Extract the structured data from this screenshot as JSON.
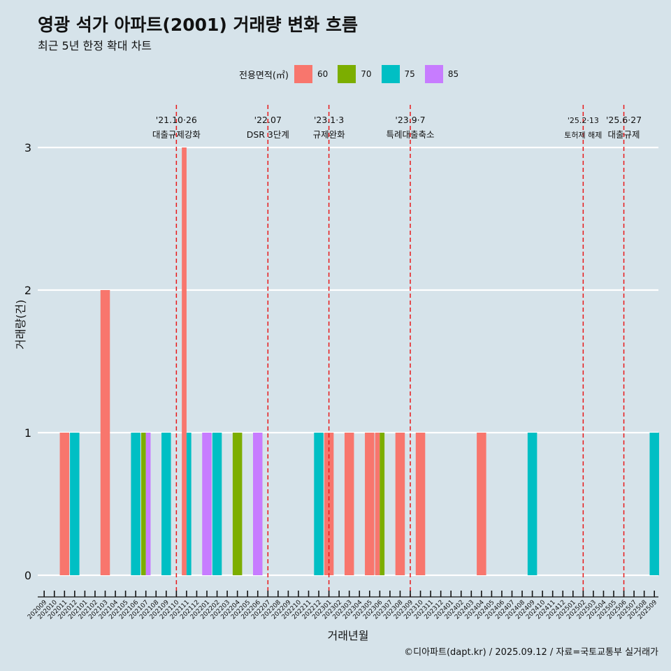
{
  "title": "영광 석가 아파트(2001) 거래량 변화 흐름",
  "subtitle": "최근 5년 한정 확대 차트",
  "legend": {
    "title": "전용면적(㎡)",
    "items": [
      {
        "label": "60",
        "color": "#f8766d"
      },
      {
        "label": "70",
        "color": "#7cae00"
      },
      {
        "label": "75",
        "color": "#00bfc4"
      },
      {
        "label": "85",
        "color": "#c77cff"
      }
    ]
  },
  "caption": "©디아파트(dapt.kr) / 2025.09.12 / 자료=국토교통부 실거래가",
  "chart_data": {
    "type": "bar",
    "xlabel": "거래년월",
    "ylabel": "거래량(건)",
    "ylim": [
      0,
      3
    ],
    "yticks": [
      0,
      1,
      2,
      3
    ],
    "grid": true,
    "legend_position": "top",
    "categories": [
      "202009",
      "202010",
      "202011",
      "202012",
      "202101",
      "202102",
      "202103",
      "202104",
      "202105",
      "202106",
      "202107",
      "202108",
      "202109",
      "202110",
      "202111",
      "202112",
      "202201",
      "202202",
      "202203",
      "202204",
      "202205",
      "202206",
      "202207",
      "202208",
      "202209",
      "202210",
      "202211",
      "202212",
      "202301",
      "202302",
      "202303",
      "202304",
      "202305",
      "202306",
      "202307",
      "202308",
      "202309",
      "202310",
      "202311",
      "202312",
      "202401",
      "202402",
      "202403",
      "202404",
      "202405",
      "202406",
      "202407",
      "202408",
      "202409",
      "202410",
      "202411",
      "202412",
      "202501",
      "202502",
      "202503",
      "202504",
      "202505",
      "202506",
      "202507",
      "202508",
      "202509"
    ],
    "series": [
      {
        "name": "60",
        "color": "#f8766d",
        "points": [
          {
            "x": "202011",
            "y": 1
          },
          {
            "x": "202103",
            "y": 2
          },
          {
            "x": "202111",
            "y": 3
          },
          {
            "x": "202301",
            "y": 1
          },
          {
            "x": "202303",
            "y": 1
          },
          {
            "x": "202305",
            "y": 1
          },
          {
            "x": "202306",
            "y": 1
          },
          {
            "x": "202308",
            "y": 1
          },
          {
            "x": "202310",
            "y": 1
          },
          {
            "x": "202404",
            "y": 1
          }
        ]
      },
      {
        "name": "70",
        "color": "#7cae00",
        "points": [
          {
            "x": "202107",
            "y": 1
          },
          {
            "x": "202204",
            "y": 1
          },
          {
            "x": "202306",
            "y": 1
          }
        ]
      },
      {
        "name": "75",
        "color": "#00bfc4",
        "points": [
          {
            "x": "202012",
            "y": 1
          },
          {
            "x": "202106",
            "y": 1
          },
          {
            "x": "202109",
            "y": 1
          },
          {
            "x": "202111",
            "y": 1
          },
          {
            "x": "202202",
            "y": 1
          },
          {
            "x": "202212",
            "y": 1
          },
          {
            "x": "202409",
            "y": 1
          },
          {
            "x": "202509",
            "y": 1
          }
        ]
      },
      {
        "name": "85",
        "color": "#c77cff",
        "points": [
          {
            "x": "202107",
            "y": 1
          },
          {
            "x": "202201",
            "y": 1
          },
          {
            "x": "202206",
            "y": 1
          }
        ]
      }
    ],
    "events": [
      {
        "x": "202110",
        "date": "'21.10·26",
        "label": "대출규제강화"
      },
      {
        "x": "202207",
        "date": "'22.07",
        "label": "DSR 3단계"
      },
      {
        "x": "202301",
        "date": "'23.1·3",
        "label": "규제완화"
      },
      {
        "x": "202309",
        "date": "'23.9·7",
        "label": "특례대출축소"
      },
      {
        "x": "202502",
        "date": "'25.2·13",
        "label": "토허제 해제"
      },
      {
        "x": "202506",
        "date": "'25.6·27",
        "label": "대출규제"
      }
    ]
  }
}
